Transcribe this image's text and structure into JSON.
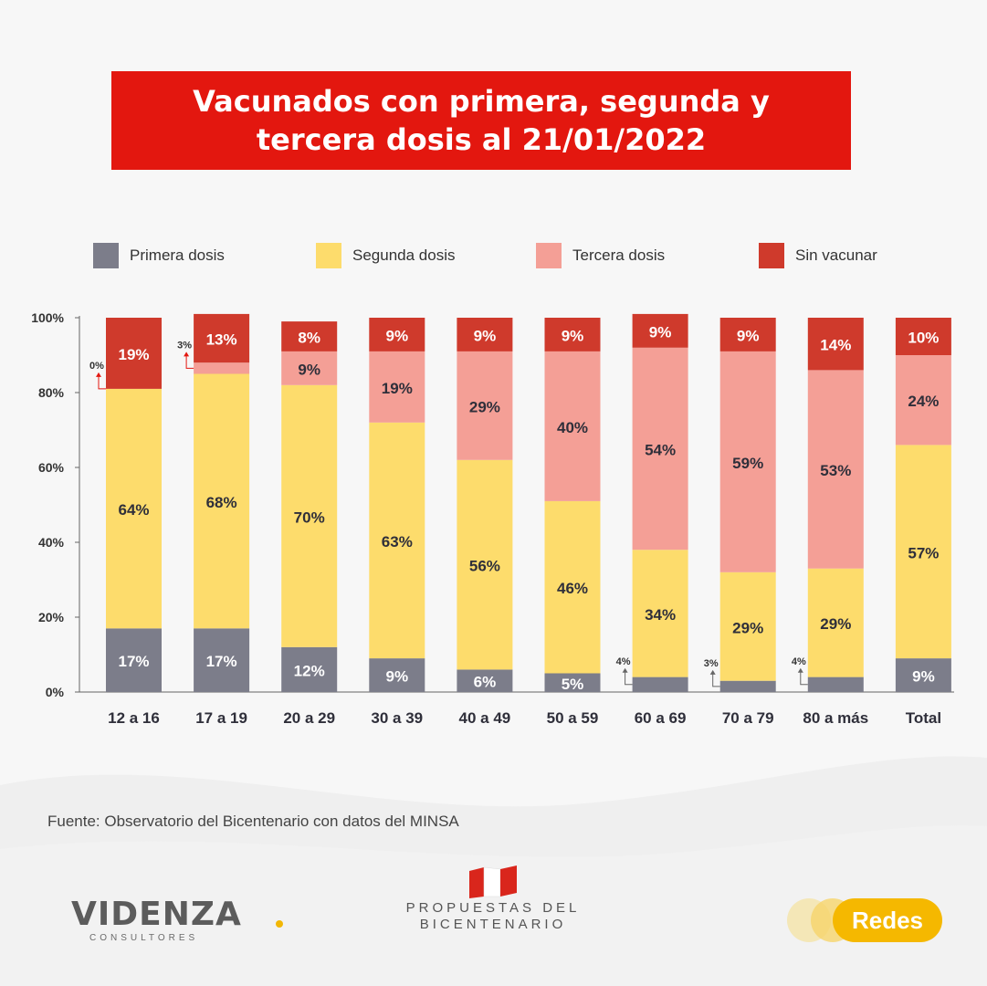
{
  "title_line1": "Vacunados con primera, segunda y",
  "title_line2": "tercera dosis al 21/01/2022",
  "legend": [
    {
      "label": "Primera dosis",
      "color": "#7c7d8a"
    },
    {
      "label": "Segunda dosis",
      "color": "#fddc6c"
    },
    {
      "label": "Tercera dosis",
      "color": "#f49f96"
    },
    {
      "label": "Sin vacunar",
      "color": "#cf3a2c"
    }
  ],
  "chart_data": {
    "type": "bar",
    "stacked": true,
    "categories": [
      "12 a 16",
      "17 a 19",
      "20 a 29",
      "30 a 39",
      "40 a 49",
      "50 a 59",
      "60 a 69",
      "70 a 79",
      "80 a más",
      "Total"
    ],
    "series": [
      {
        "name": "Primera dosis",
        "color": "#7c7d8a",
        "values": [
          17,
          17,
          12,
          9,
          6,
          5,
          4,
          3,
          4,
          9
        ]
      },
      {
        "name": "Segunda dosis",
        "color": "#fddc6c",
        "values": [
          64,
          68,
          70,
          63,
          56,
          46,
          34,
          29,
          29,
          57
        ]
      },
      {
        "name": "Tercera dosis",
        "color": "#f49f96",
        "values": [
          0,
          3,
          9,
          19,
          29,
          40,
          54,
          59,
          53,
          24
        ]
      },
      {
        "name": "Sin vacunar",
        "color": "#cf3a2c",
        "values": [
          19,
          13,
          8,
          9,
          9,
          9,
          9,
          9,
          14,
          10
        ]
      }
    ],
    "yticks": [
      "0%",
      "20%",
      "40%",
      "60%",
      "80%",
      "100%"
    ],
    "ylim": [
      0,
      100
    ],
    "xlabel": "",
    "ylabel": "",
    "legend_position": "top"
  },
  "source": "Fuente: Observatorio del Bicentenario con datos del MINSA",
  "logos": {
    "videnza": "VIDENZA",
    "videnza_sub": "CONSULTORES",
    "propuestas_line1": "PROPUESTAS DEL",
    "propuestas_line2": "BICENTENARIO",
    "redes": "Redes"
  }
}
